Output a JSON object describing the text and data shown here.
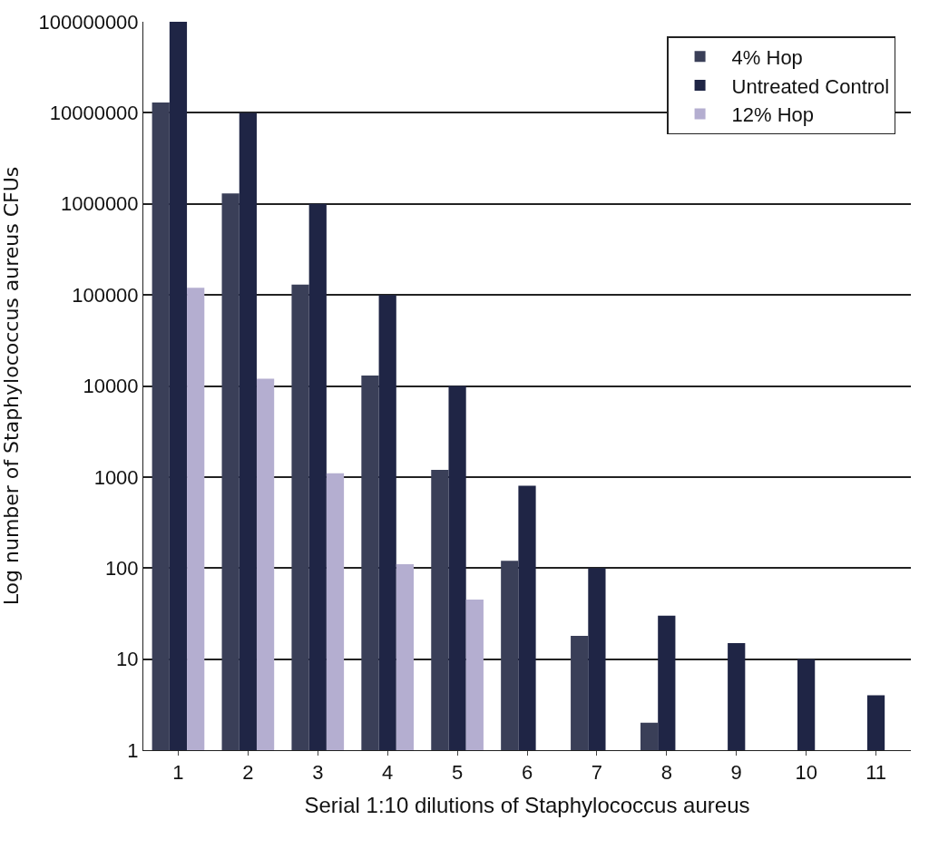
{
  "chart_data": {
    "type": "bar",
    "xlabel": "Serial 1:10 dilutions of Staphylococcus aureus",
    "ylabel": "Log number of Staphylococcus aureus CFUs",
    "categories": [
      "1",
      "2",
      "3",
      "4",
      "5",
      "6",
      "7",
      "8",
      "9",
      "10",
      "11"
    ],
    "series": [
      {
        "name": "4% Hop",
        "color": "#3a3f58",
        "values": [
          13000000,
          1300000,
          130000,
          13000,
          1200,
          120,
          18,
          2,
          null,
          null,
          null
        ]
      },
      {
        "name": "Untreated Control",
        "color": "#1f2545",
        "values": [
          100000000,
          10000000,
          1000000,
          100000,
          10000,
          800,
          100,
          30,
          15,
          10,
          4
        ]
      },
      {
        "name": "12% Hop",
        "color": "#b4aed0",
        "values": [
          120000,
          12000,
          1100,
          110,
          45,
          null,
          null,
          null,
          null,
          null,
          null
        ]
      }
    ],
    "log": "y",
    "ylim": [
      1,
      100000000
    ],
    "yticks": [
      1,
      10,
      100,
      1000,
      10000,
      100000,
      1000000,
      10000000,
      100000000
    ],
    "grid": "y",
    "legend": "top right"
  }
}
